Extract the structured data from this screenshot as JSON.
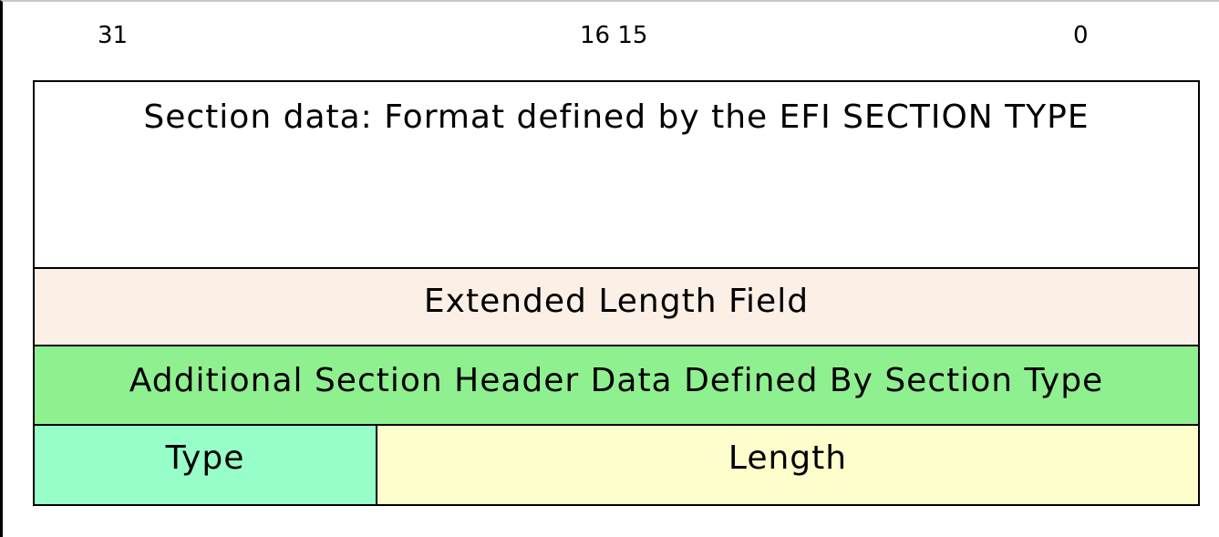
{
  "bit_labels": {
    "msb": "31",
    "mid": "16 15",
    "lsb": "0"
  },
  "rows": {
    "section_data": "Section data: Format defined by the EFI SECTION TYPE",
    "extended_length": "Extended Length Field",
    "additional_header": "Additional Section Header Data Defined By Section Type",
    "type": "Type",
    "length": "Length"
  },
  "colors": {
    "section_data_bg": "#ffffff",
    "extended_length_bg": "#fcefe6",
    "additional_header_bg": "#8ff08f",
    "type_bg": "#97fdc9",
    "length_bg": "#fefdcc"
  }
}
